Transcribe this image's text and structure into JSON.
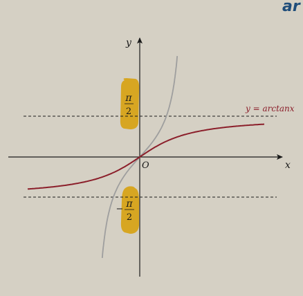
{
  "corner_mark": "ar",
  "axes": {
    "x_label": "x",
    "y_label": "y",
    "origin_label": "O"
  },
  "asymptotes": {
    "upper": {
      "numerator": "π",
      "denominator": "2"
    },
    "lower": {
      "sign": "−",
      "numerator": "π",
      "denominator": "2"
    }
  },
  "curve_label": "y = arctanx",
  "colors": {
    "background": "#d5d0c4",
    "axis": "#1a1a1a",
    "arctan_curve": "#8b1e2a",
    "tan_curve": "#9e9e9e",
    "highlight": "#d7a622",
    "corner_mark": "#1f4d7a"
  }
}
